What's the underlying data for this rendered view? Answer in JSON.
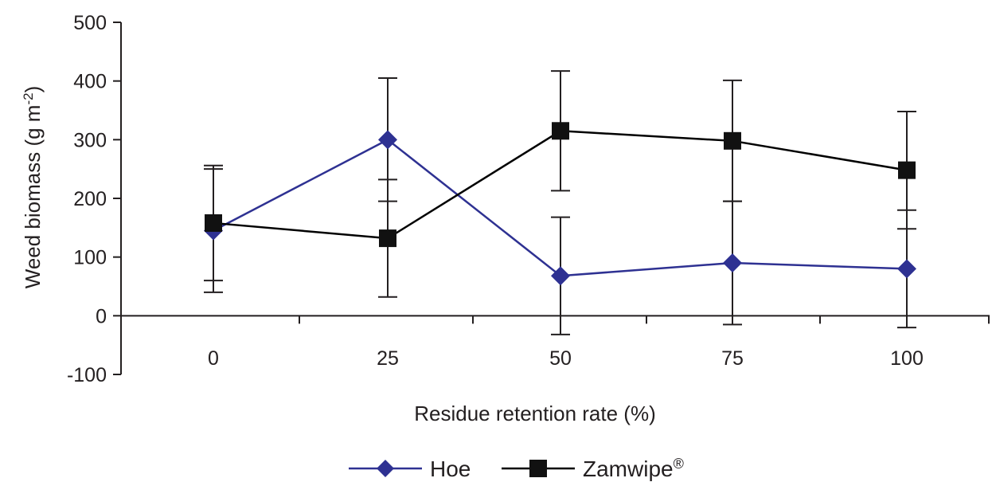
{
  "chart_data": {
    "type": "line",
    "xlabel": "Residue retention rate (%)",
    "ylabel_main": "Weed biomass (g m",
    "ylabel_sup": "-2",
    "ylabel_close": ")",
    "categories": [
      "0",
      "25",
      "50",
      "75",
      "100"
    ],
    "ylim": [
      -100,
      500
    ],
    "yticks": [
      -100,
      0,
      100,
      200,
      300,
      400,
      500
    ],
    "ytick_labels": [
      "-100",
      "0",
      "100",
      "200",
      "300",
      "400",
      "500"
    ],
    "grid": false,
    "legend_position": "bottom",
    "series": [
      {
        "name": "Hoe",
        "marker": "diamond",
        "color": "#2e3192",
        "values": [
          145,
          300,
          68,
          90,
          80
        ],
        "error": [
          105,
          105,
          100,
          105,
          100
        ]
      },
      {
        "name": "Zamwipe",
        "name_sup": "®",
        "marker": "square",
        "color": "#000000",
        "values": [
          158,
          132,
          315,
          298,
          248
        ],
        "error": [
          98,
          100,
          102,
          103,
          100
        ]
      }
    ]
  }
}
